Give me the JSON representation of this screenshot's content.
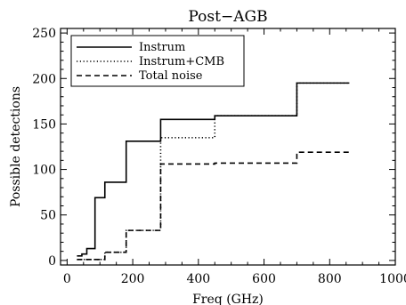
{
  "chart_data": {
    "type": "line",
    "title": "Post−AGB",
    "xlabel": "Freq (GHz)",
    "ylabel": "Possible detections",
    "xlim": [
      -20,
      1000
    ],
    "ylim": [
      -5,
      255
    ],
    "xticks": [
      0,
      200,
      400,
      600,
      800,
      1000
    ],
    "yticks": [
      0,
      50,
      100,
      150,
      200,
      250
    ],
    "grid": false,
    "legend_position": "top-left",
    "step": "post",
    "series": [
      {
        "name": "Instrum",
        "style": "solid",
        "x": [
          30,
          45,
          60,
          85,
          115,
          180,
          285,
          450,
          700,
          860
        ],
        "y": [
          5,
          7,
          13,
          69,
          86,
          131,
          155,
          159,
          195,
          195
        ]
      },
      {
        "name": "Instrum+CMB",
        "style": "dotted",
        "x": [
          30,
          45,
          60,
          85,
          115,
          180,
          285,
          450,
          700,
          860
        ],
        "y": [
          1,
          1,
          1,
          1,
          9,
          33,
          135,
          159,
          195,
          195
        ]
      },
      {
        "name": "Total noise",
        "style": "dashed",
        "x": [
          30,
          45,
          60,
          85,
          115,
          180,
          285,
          450,
          700,
          860
        ],
        "y": [
          1,
          1,
          1,
          1,
          9,
          33,
          106,
          107,
          119,
          119
        ]
      }
    ]
  }
}
